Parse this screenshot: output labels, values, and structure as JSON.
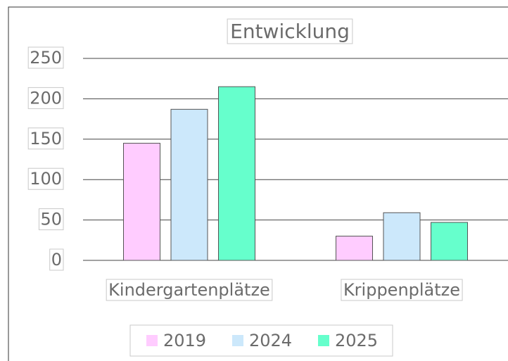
{
  "chart_data": {
    "type": "bar",
    "title": "Entwicklung",
    "categories": [
      "Kindergartenplätze",
      "Krippenplätze"
    ],
    "series": [
      {
        "name": "2019",
        "color": "#ffccff",
        "values": [
          145,
          30
        ]
      },
      {
        "name": "2024",
        "color": "#cce8fb",
        "values": [
          187,
          59
        ]
      },
      {
        "name": "2025",
        "color": "#66ffcc",
        "values": [
          215,
          47
        ]
      }
    ],
    "ylim": [
      0,
      250
    ],
    "yticks": [
      0,
      50,
      100,
      150,
      200,
      250
    ],
    "grid": true,
    "legend": "bottom"
  }
}
